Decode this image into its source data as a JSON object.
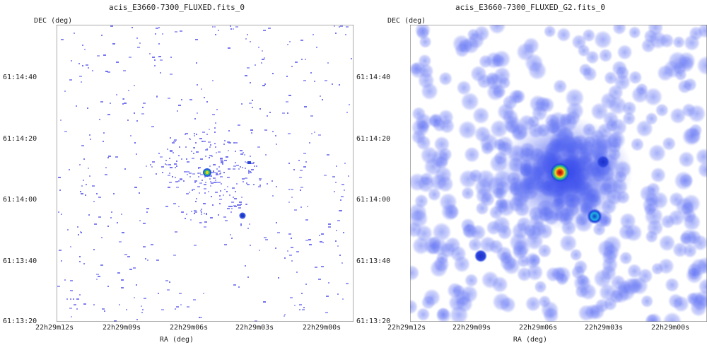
{
  "panels": [
    {
      "title": "acis_E3660-7300_FLUXED.fits_0",
      "ylabel": "DEC (deg)",
      "xlabel": "RA (deg)",
      "yticks": [
        "61:14:40",
        "61:14:20",
        "61:14:00",
        "61:13:40",
        "61:13:20"
      ],
      "xticks": [
        "22h29m12s",
        "22h29m09s",
        "22h29m06s",
        "22h29m03s",
        "22h29m00s"
      ],
      "style": "sparse-pixel-events"
    },
    {
      "title": "acis_E3660-7300_FLUXED_G2.fits_0",
      "ylabel": "DEC (deg)",
      "xlabel": "RA (deg)",
      "yticks": [
        "61:14:40",
        "61:14:20",
        "61:14:00",
        "61:13:40",
        "61:13:20"
      ],
      "xticks": [
        "22h29m12s",
        "22h29m09s",
        "22h29m06s",
        "22h29m03s",
        "22h29m00s"
      ],
      "style": "gaussian-smoothed"
    }
  ],
  "colors": {
    "event": "#6f6ff0",
    "smooth": "#5a6cf4",
    "source_core": "#b81c1c",
    "source_ring": "#f4d21c",
    "source_outer": "#1fbf6a",
    "source_halo": "#2c4ff0"
  }
}
